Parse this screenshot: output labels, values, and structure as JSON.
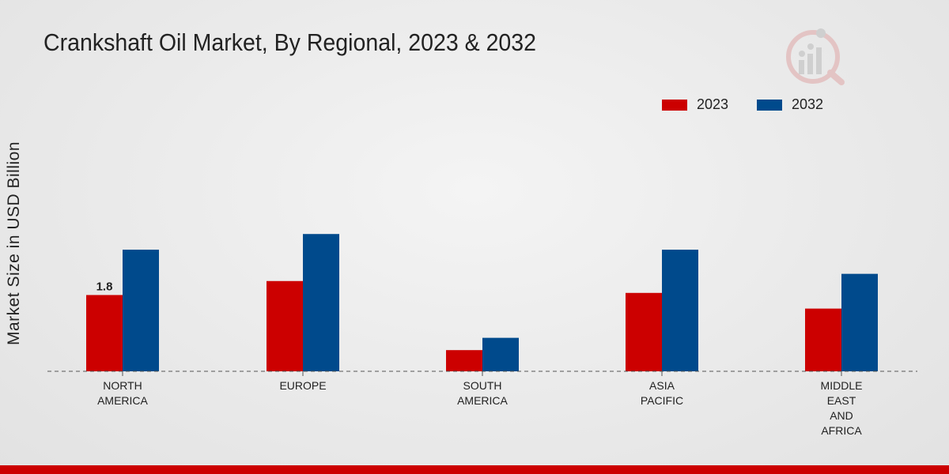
{
  "chart_data": {
    "type": "bar",
    "title": "Crankshaft Oil Market, By Regional, 2023 & 2032",
    "xlabel": "",
    "ylabel": "Market Size in USD Billion",
    "categories": [
      [
        "NORTH",
        "AMERICA"
      ],
      [
        "EUROPE"
      ],
      [
        "SOUTH",
        "AMERICA"
      ],
      [
        "ASIA",
        "PACIFIC"
      ],
      [
        "MIDDLE",
        "EAST",
        "AND",
        "AFRICA"
      ]
    ],
    "series": [
      {
        "name": "2023",
        "color": "#cc0000",
        "values": [
          1.8,
          2.13,
          0.5,
          1.85,
          1.48
        ]
      },
      {
        "name": "2032",
        "color": "#004a8c",
        "values": [
          2.87,
          3.24,
          0.79,
          2.87,
          2.3
        ]
      }
    ],
    "data_labels": [
      {
        "series": 0,
        "index": 0,
        "text": "1.8"
      }
    ],
    "ylim": [
      0,
      5.5
    ],
    "grid": false,
    "legend_position": "top-right"
  }
}
